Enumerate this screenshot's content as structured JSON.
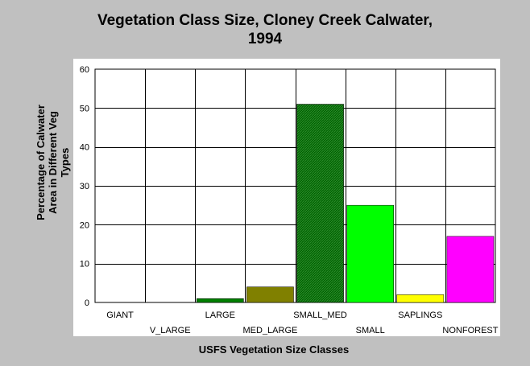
{
  "chart_data": {
    "type": "bar",
    "title_lines": [
      "Vegetation Class Size, Cloney Creek Calwater,",
      "1994"
    ],
    "xlabel": "USFS Vegetation Size Classes",
    "ylabel_lines": [
      "Percentage of Calwater",
      "Area in Different Veg",
      "Types"
    ],
    "categories": [
      "GIANT",
      "V_LARGE",
      "LARGE",
      "MED_LARGE",
      "SMALL_MED",
      "SMALL",
      "SAPLINGS",
      "NONFOREST"
    ],
    "values": [
      0,
      0,
      1,
      4,
      51,
      25,
      2,
      17
    ],
    "bar_colors": [
      "#008000",
      "#008000",
      "#008000",
      "#808000",
      "#006400",
      "#00ff00",
      "#ffff00",
      "#ff00ff"
    ],
    "hatched_category": "SMALL_MED",
    "ylim": [
      0,
      60
    ],
    "yticks": [
      0,
      10,
      20,
      30,
      40,
      50,
      60
    ],
    "grid": true,
    "legend": "none"
  }
}
